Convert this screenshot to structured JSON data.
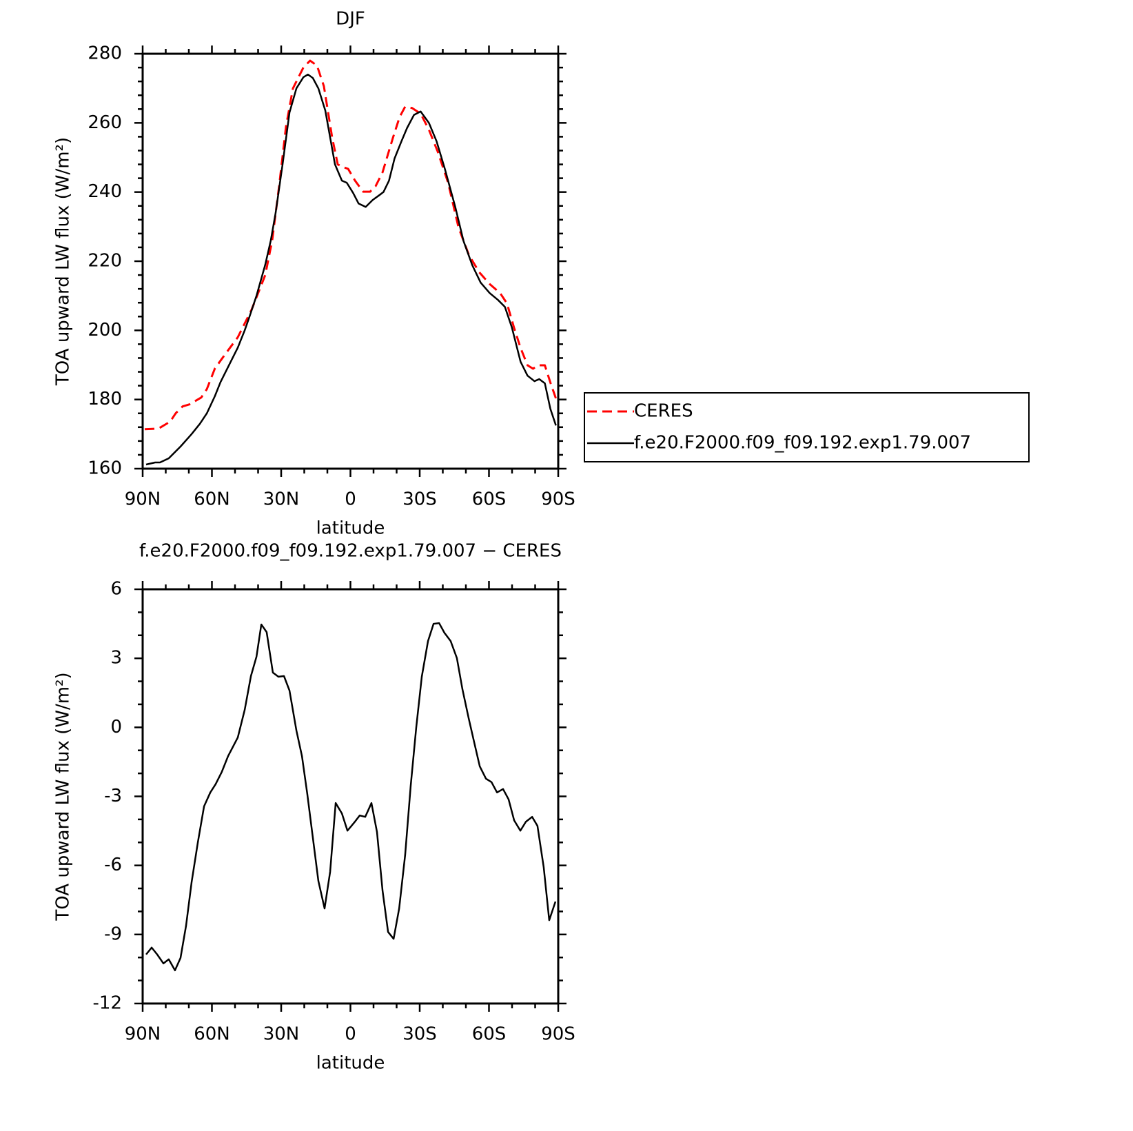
{
  "chart_data": [
    {
      "type": "line",
      "title": "DJF",
      "xlabel": "latitude",
      "ylabel": "TOA upward LW flux (W/m²)",
      "xlim": [
        90,
        -90
      ],
      "xticks": [
        {
          "value": 90,
          "label": "90N"
        },
        {
          "value": 60,
          "label": "60N"
        },
        {
          "value": 30,
          "label": "30N"
        },
        0,
        {
          "value": -30,
          "label": "30S"
        },
        {
          "value": -60,
          "label": "60S"
        },
        {
          "value": -90,
          "label": "90S"
        }
      ],
      "ylim": [
        160,
        280
      ],
      "yticks": [
        160,
        180,
        200,
        220,
        240,
        260,
        280
      ],
      "legend": "right",
      "series": [
        {
          "name": "CERES",
          "color": "#ff0000",
          "dash": true,
          "x": [
            89.1,
            83.1,
            78.1,
            75.7,
            72.7,
            69.7,
            64.6,
            62.2,
            58.7,
            54.8,
            48.8,
            42.8,
            36.9,
            33.9,
            30.9,
            27.9,
            24.9,
            20.4,
            17.5,
            14.5,
            11.5,
            7.9,
            5.5,
            3.4,
            1.0,
            -2.0,
            -5.5,
            -8.5,
            -10.9,
            -13.9,
            -18.4,
            -21.3,
            -23.7,
            -26.7,
            -30.4,
            -34.0,
            -37.8,
            -42.3,
            -46.8,
            -51.3,
            -55.8,
            -60.3,
            -64.8,
            -67.8,
            -70.8,
            -73.7,
            -76.7,
            -79.1,
            -81.2,
            -84.2,
            -86.6,
            -89.0
          ],
          "values": [
            171.4,
            171.6,
            173.6,
            176.0,
            178.0,
            178.6,
            180.6,
            183.0,
            189.0,
            192.6,
            198.0,
            206.0,
            216.0,
            226.0,
            241.7,
            259.0,
            270.0,
            276.0,
            278.0,
            276.6,
            270.6,
            255.7,
            248.0,
            247.3,
            246.7,
            243.3,
            240.1,
            240.1,
            241.7,
            245.7,
            255.7,
            261.7,
            264.7,
            264.3,
            262.7,
            258.0,
            251.7,
            242.7,
            229.8,
            221.8,
            216.8,
            213.4,
            210.8,
            207.8,
            200.9,
            194.9,
            189.9,
            188.9,
            189.9,
            189.9,
            184.9,
            180.3
          ]
        },
        {
          "name": "f.e20.F2000.f09_f09.192.exp1.79.007",
          "color": "#000000",
          "dash": false,
          "x": [
            88.5,
            84.6,
            82.5,
            78.7,
            73.6,
            68.8,
            65.2,
            62.2,
            58.7,
            56.3,
            51.8,
            48.8,
            45.8,
            43.7,
            40.7,
            36.9,
            34.5,
            32.4,
            29.4,
            26.4,
            23.4,
            20.4,
            18.4,
            16.3,
            13.9,
            10.9,
            6.7,
            3.7,
            1.6,
            -1.2,
            -3.5,
            -6.6,
            -9.6,
            -12.5,
            -14.3,
            -16.7,
            -19.1,
            -22.1,
            -24.5,
            -27.5,
            -30.4,
            -34.0,
            -37.3,
            -40.9,
            -45.4,
            -49.0,
            -52.8,
            -56.4,
            -60.3,
            -63.9,
            -66.9,
            -69.9,
            -73.7,
            -76.7,
            -79.7,
            -81.8,
            -84.2,
            -86.6,
            -89.0
          ],
          "values": [
            161.2,
            161.8,
            161.8,
            163.0,
            166.4,
            170.0,
            173.0,
            176.0,
            181.0,
            185.0,
            191.0,
            195.0,
            200.0,
            204.0,
            210.0,
            219.0,
            226.0,
            234.0,
            248.0,
            263.0,
            270.0,
            273.2,
            274.0,
            273.0,
            270.0,
            263.6,
            248.0,
            243.3,
            242.7,
            239.7,
            236.7,
            235.7,
            237.7,
            239.1,
            240.0,
            243.3,
            249.7,
            254.7,
            258.5,
            262.3,
            263.3,
            260.0,
            254.7,
            246.7,
            235.7,
            225.8,
            218.8,
            213.8,
            210.8,
            208.8,
            206.8,
            200.9,
            190.9,
            186.9,
            185.3,
            185.9,
            184.7,
            177.3,
            172.5
          ]
        }
      ]
    },
    {
      "type": "line",
      "title": "f.e20.F2000.f09_f09.192.exp1.79.007 − CERES",
      "xlabel": "latitude",
      "ylabel": "TOA upward LW flux (W/m²)",
      "xlim": [
        90,
        -90
      ],
      "xticks": [
        {
          "value": 90,
          "label": "90N"
        },
        {
          "value": 60,
          "label": "60N"
        },
        {
          "value": 30,
          "label": "30N"
        },
        0,
        {
          "value": -30,
          "label": "30S"
        },
        {
          "value": -60,
          "label": "60S"
        },
        {
          "value": -90,
          "label": "90S"
        }
      ],
      "ylim": [
        -12,
        6
      ],
      "yticks": [
        -12,
        -9,
        -6,
        -3,
        0,
        3,
        6
      ],
      "series": [
        {
          "color": "#000000",
          "dash": false,
          "x": [
            88.5,
            86.1,
            83.7,
            81.0,
            78.7,
            76.0,
            73.6,
            71.2,
            68.8,
            66.1,
            63.4,
            60.7,
            58.4,
            55.7,
            53.0,
            48.8,
            45.8,
            43.1,
            40.7,
            38.6,
            36.3,
            33.6,
            31.2,
            28.8,
            26.4,
            23.4,
            21.0,
            18.7,
            16.3,
            13.9,
            11.2,
            8.8,
            6.4,
            3.7,
            1.3,
            -1.7,
            -4.0,
            -6.4,
            -9.1,
            -11.5,
            -13.9,
            -16.3,
            -18.7,
            -21.1,
            -23.7,
            -26.1,
            -28.5,
            -30.9,
            -33.6,
            -36.0,
            -38.4,
            -40.7,
            -43.4,
            -46.1,
            -48.5,
            -51.2,
            -53.6,
            -56.0,
            -58.7,
            -61.1,
            -63.5,
            -66.1,
            -68.5,
            -70.9,
            -73.6,
            -76.0,
            -78.7,
            -81.0,
            -83.7,
            -86.1,
            -88.8
          ],
          "values": [
            -9.87,
            -9.57,
            -9.87,
            -10.26,
            -10.08,
            -10.56,
            -10.02,
            -8.62,
            -6.73,
            -5.0,
            -3.43,
            -2.83,
            -2.47,
            -1.93,
            -1.25,
            -0.44,
            0.76,
            2.23,
            3.07,
            4.47,
            4.14,
            2.38,
            2.2,
            2.23,
            1.6,
            -0.14,
            -1.25,
            -2.89,
            -4.78,
            -6.67,
            -7.87,
            -6.28,
            -3.29,
            -3.74,
            -4.49,
            -4.13,
            -3.83,
            -3.89,
            -3.29,
            -4.55,
            -7.09,
            -8.89,
            -9.19,
            -7.87,
            -5.54,
            -2.54,
            0.0,
            2.2,
            3.75,
            4.5,
            4.53,
            4.11,
            3.75,
            3.01,
            1.66,
            0.4,
            -0.65,
            -1.69,
            -2.23,
            -2.38,
            -2.83,
            -2.68,
            -3.13,
            -4.04,
            -4.49,
            -4.1,
            -3.89,
            -4.28,
            -6.07,
            -8.38,
            -7.57
          ]
        }
      ]
    }
  ]
}
